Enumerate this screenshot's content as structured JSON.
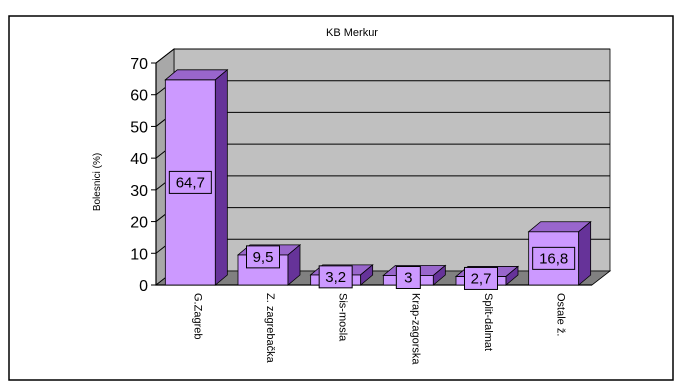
{
  "chart_data": {
    "type": "bar",
    "title": "KB Merkur",
    "xlabel": "",
    "ylabel": "Bolesnici (%)",
    "ylim": [
      0,
      70
    ],
    "yticks": [
      0,
      10,
      20,
      30,
      40,
      50,
      60,
      70
    ],
    "grid": true,
    "legend": "none",
    "categories": [
      "G.Zagreb",
      "Z. zagrebačka",
      "Sis-mosla",
      "Krap-zagorska",
      "Split-dalmat",
      "Ostale ž."
    ],
    "values": [
      64.7,
      9.5,
      3.2,
      3,
      2.7,
      16.8
    ],
    "value_labels": [
      "64,7",
      "9,5",
      "3,2",
      "3",
      "2,7",
      "16,8"
    ],
    "colors": {
      "bar_front": "#cc99ff",
      "bar_top": "#9966cc",
      "bar_side": "#663399",
      "wall": "#c0c0c0",
      "floor": "#808080",
      "grid": "#000000"
    }
  }
}
